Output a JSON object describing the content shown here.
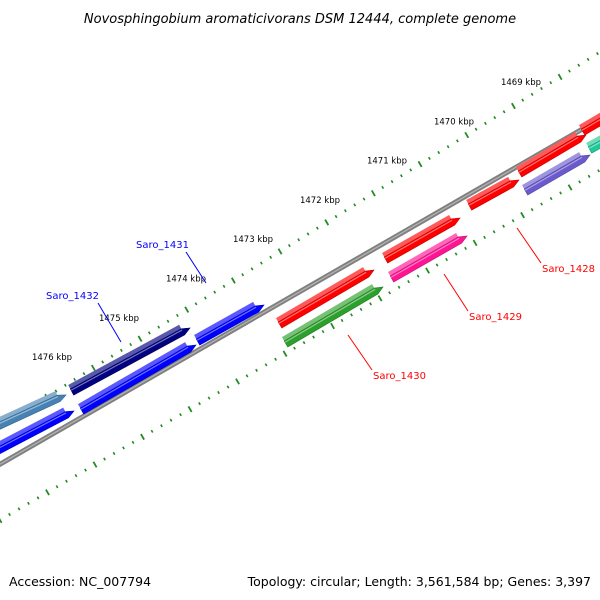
{
  "title": "Novosphingobium aromaticivorans DSM 12444, complete genome",
  "footer": {
    "accession": "Accession: NC_007794",
    "summary": "Topology: circular; Length: 3,561,584 bp; Genes: 3,397"
  },
  "ticks": [
    {
      "label": "1469 kbp",
      "kbp": 1469
    },
    {
      "label": "1470 kbp",
      "kbp": 1470
    },
    {
      "label": "1471 kbp",
      "kbp": 1471
    },
    {
      "label": "1472 kbp",
      "kbp": 1472
    },
    {
      "label": "1473 kbp",
      "kbp": 1473
    },
    {
      "label": "1474 kbp",
      "kbp": 1474
    },
    {
      "label": "1475 kbp",
      "kbp": 1475
    },
    {
      "label": "1476 kbp",
      "kbp": 1476
    }
  ],
  "gene_labels": [
    {
      "name": "Saro_1428",
      "color": "#ff0000"
    },
    {
      "name": "Saro_1429",
      "color": "#ff0000"
    },
    {
      "name": "Saro_1430",
      "color": "#ff0000"
    },
    {
      "name": "Saro_1431",
      "color": "#0000ff"
    },
    {
      "name": "Saro_1432",
      "color": "#0000ff"
    }
  ],
  "colors": {
    "backbone": "#808080",
    "tick": "#228b22",
    "red": "#ff0000",
    "pink": "#ff1493",
    "green": "#2ca02c",
    "navy": "#000080",
    "blue": "#0000ff",
    "purple": "#6a5acd",
    "teal": "#20c997",
    "steel": "#4682b4"
  }
}
